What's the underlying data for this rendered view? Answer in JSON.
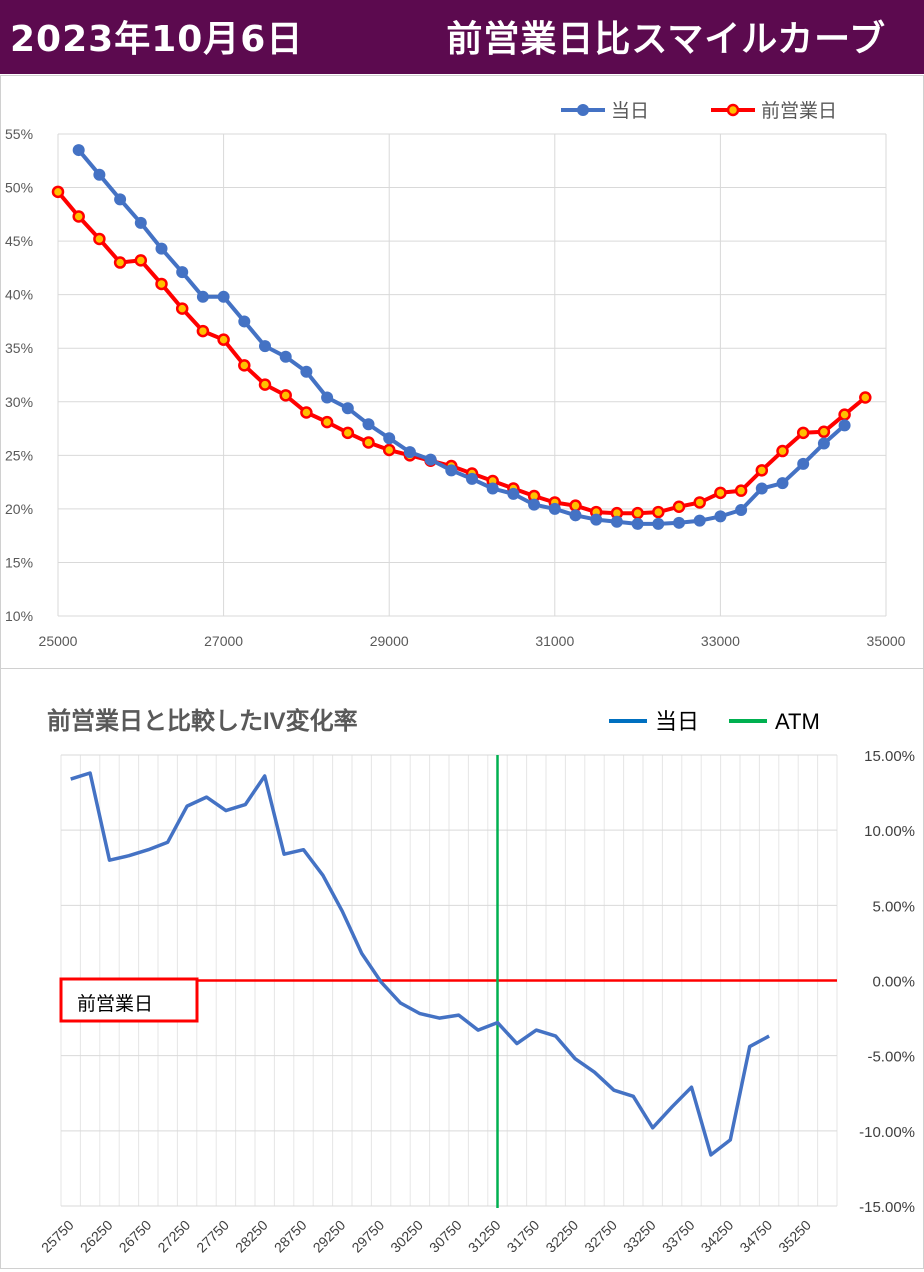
{
  "header": {
    "date": "2023年10月6日",
    "title": "前営業日比スマイルカーブ"
  },
  "charts": {
    "top": {
      "type": "line",
      "title": "",
      "legend": [
        {
          "name": "当日",
          "color": "#4472c4"
        },
        {
          "name": "前営業日",
          "color": "#ff0000"
        }
      ],
      "legend_position": "top-right",
      "xlim": [
        25000,
        35000
      ],
      "xticks": [
        25000,
        27000,
        29000,
        31000,
        33000,
        35000
      ],
      "ylim": [
        10,
        55
      ],
      "yticks": [
        10,
        15,
        20,
        25,
        30,
        35,
        40,
        45,
        50,
        55
      ],
      "ytick_labels": [
        "10%",
        "15%",
        "20%",
        "25%",
        "30%",
        "35%",
        "40%",
        "45%",
        "50%",
        "55%"
      ],
      "grid": true
    },
    "bottom": {
      "type": "line",
      "title": "前営業日と比較したIV変化率",
      "legend": [
        {
          "name": "当日",
          "color": "#0070c0"
        },
        {
          "name": "ATM",
          "color": "#00b050"
        }
      ],
      "legend_position": "top-right",
      "ylim": [
        -15,
        15
      ],
      "yticks": [
        15,
        10,
        5,
        0,
        -5,
        -10,
        -15
      ],
      "ytick_labels": [
        "15.00%",
        "10.00%",
        "5.00%",
        "0.00%",
        "-5.00%",
        "-10.00%",
        "-15.00%"
      ],
      "xtick_labels": [
        "25750",
        "26250",
        "26750",
        "27250",
        "27750",
        "28250",
        "28750",
        "29250",
        "29750",
        "30250",
        "30750",
        "31250",
        "31750",
        "32250",
        "32750",
        "33250",
        "33750",
        "34250",
        "34750",
        "35250"
      ],
      "atm_strike": 31250,
      "reference_label": "前営業日",
      "grid": true
    }
  },
  "chart_data": [
    {
      "type": "line",
      "xlim": [
        25000,
        35000
      ],
      "ylim": [
        10,
        55
      ],
      "series": [
        {
          "name": "当日",
          "color": "#4472c4",
          "x": [
            25250,
            25500,
            25750,
            26000,
            26250,
            26500,
            26750,
            27000,
            27250,
            27500,
            27750,
            28000,
            28250,
            28500,
            28750,
            29000,
            29250,
            29500,
            29750,
            30000,
            30250,
            30500,
            30750,
            31000,
            31250,
            31500,
            31750,
            32000,
            32250,
            32500,
            32750,
            33000,
            33250,
            33500,
            33750,
            34000,
            34250,
            34500
          ],
          "y": [
            53.5,
            51.2,
            48.9,
            46.7,
            44.3,
            42.1,
            39.8,
            39.8,
            37.5,
            35.2,
            34.2,
            32.8,
            30.4,
            29.4,
            27.9,
            26.6,
            25.3,
            24.6,
            23.6,
            22.8,
            21.9,
            21.4,
            20.4,
            20.0,
            19.4,
            19.0,
            18.8,
            18.6,
            18.6,
            18.7,
            18.9,
            19.3,
            19.9,
            21.9,
            22.4,
            24.2,
            26.1,
            27.8
          ]
        },
        {
          "name": "前営業日",
          "color": "#ff0000",
          "x": [
            25000,
            25250,
            25500,
            25750,
            26000,
            26250,
            26500,
            26750,
            27000,
            27250,
            27500,
            27750,
            28000,
            28250,
            28500,
            28750,
            29000,
            29250,
            29500,
            29750,
            30000,
            30250,
            30500,
            30750,
            31000,
            31250,
            31500,
            31750,
            32000,
            32250,
            32500,
            32750,
            33000,
            33250,
            33500,
            33750,
            34000,
            34250,
            34500,
            34750
          ],
          "y": [
            49.6,
            47.3,
            45.2,
            43.0,
            43.2,
            41.0,
            38.7,
            36.6,
            35.8,
            33.4,
            31.6,
            30.6,
            29.0,
            28.1,
            27.1,
            26.2,
            25.5,
            25.0,
            24.5,
            24.0,
            23.3,
            22.6,
            21.9,
            21.2,
            20.6,
            20.3,
            19.7,
            19.6,
            19.6,
            19.7,
            20.2,
            20.6,
            21.5,
            21.7,
            23.6,
            25.4,
            27.1,
            27.2,
            28.8,
            30.4
          ]
        }
      ]
    },
    {
      "type": "line",
      "ylim": [
        -15,
        15
      ],
      "categories": [
        25750,
        26000,
        26250,
        26500,
        26750,
        27000,
        27250,
        27500,
        27750,
        28000,
        28250,
        28500,
        28750,
        29000,
        29250,
        29500,
        29750,
        30000,
        30250,
        30500,
        30750,
        31000,
        31250,
        31500,
        31750,
        32000,
        32250,
        32500,
        32750,
        33000,
        33250,
        33500,
        33750,
        34000,
        34250,
        34500,
        34750,
        35000,
        35250,
        35500
      ],
      "series": [
        {
          "name": "当日",
          "color": "#4472c4",
          "values": [
            13.4,
            13.8,
            8.0,
            8.3,
            8.7,
            9.2,
            11.6,
            12.2,
            11.3,
            11.7,
            13.6,
            8.4,
            8.7,
            7.0,
            4.6,
            1.8,
            -0.1,
            -1.5,
            -2.2,
            -2.5,
            -2.3,
            -3.3,
            -2.8,
            -4.2,
            -3.3,
            -3.7,
            -5.2,
            -6.1,
            -7.3,
            -7.7,
            -9.8,
            -8.4,
            -7.1,
            -11.6,
            -10.6,
            -4.4,
            -3.7,
            null,
            null,
            null
          ]
        }
      ],
      "reference": {
        "label": "前営業日",
        "y": 0
      },
      "atm": {
        "name": "ATM",
        "x": 31250
      }
    }
  ]
}
